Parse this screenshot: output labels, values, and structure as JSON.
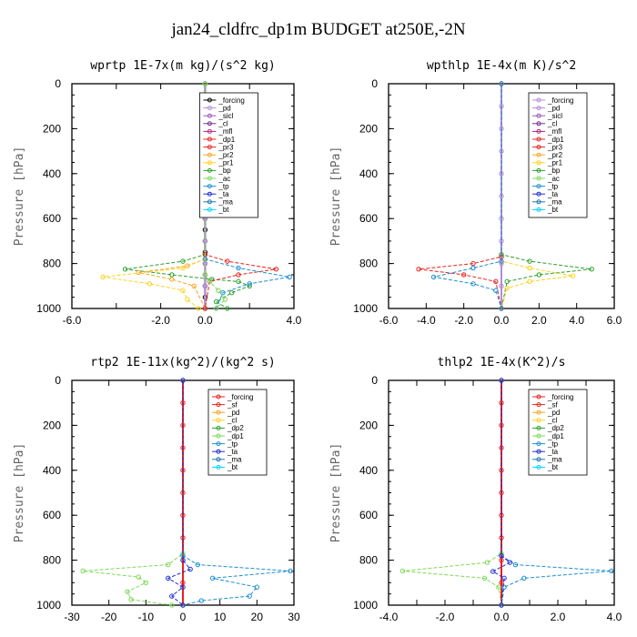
{
  "figure": {
    "title": "jan24_cldfrc_dp1m  BUDGET at250E,-2N",
    "background": "#ffffff"
  },
  "colors": {
    "_forcing": "#e8211f",
    "_forcing_black": "#000000",
    "_pd": "#b58ad8",
    "_sicl": "#9b59b6",
    "_cl": "#7b2d8e",
    "_mfl": "#b0237a",
    "_dp1": "#e8211f",
    "_pr3": "#e8211f",
    "_pr2": "#f5a623",
    "_pr1": "#ffd21f",
    "_bp": "#2ca02c",
    "_ac": "#7ed957",
    "_tp": "#1f8fd1",
    "_ta": "#1f2fd1",
    "_ma": "#1f77b4",
    "_bt": "#00d4ff",
    "_sf": "#e8211f",
    "_dp2": "#2ca02c"
  },
  "chart_data": [
    {
      "type": "line",
      "title": "wprtp  1E-7x(m kg)/(s^2 kg)",
      "ylabel": "Pressure [hPa]",
      "xlim": [
        -6,
        4
      ],
      "ylim": [
        1000,
        0
      ],
      "xticks": [
        -6,
        -4,
        -2,
        0,
        2,
        4
      ],
      "xticklabels": [
        "-6.0",
        "",
        "-2.0",
        "0.0",
        "",
        "4.0"
      ],
      "yticks": [
        0,
        200,
        400,
        600,
        800,
        1000
      ],
      "yticklabels": [
        "0",
        "200",
        "400",
        "600",
        "800",
        "1000"
      ],
      "legend_position": "top-center",
      "legend": [
        "_forcing",
        "_pd",
        "_sicl",
        "_cl",
        "_mfl",
        "_dp1",
        "_pr3",
        "_pr2",
        "_pr1",
        "_bp",
        "_ac",
        "_tp",
        "_ta",
        "_ma",
        "_bt"
      ],
      "legend_colors": [
        "#000000",
        "#b58ad8",
        "#9b59b6",
        "#7b2d8e",
        "#b0237a",
        "#e8211f",
        "#e8211f",
        "#f5a623",
        "#ffd21f",
        "#2ca02c",
        "#7ed957",
        "#1f8fd1",
        "#1f2fd1",
        "#1f77b4",
        "#00d4ff"
      ],
      "series": [
        {
          "name": "_forcing",
          "color": "#000000",
          "x": [
            0,
            0,
            0,
            0,
            0,
            0,
            0,
            0,
            0,
            0,
            0,
            0,
            0,
            0,
            0,
            0,
            0,
            0,
            0,
            0,
            0
          ],
          "y": [
            0,
            50,
            100,
            150,
            200,
            250,
            300,
            350,
            400,
            450,
            500,
            550,
            600,
            650,
            700,
            750,
            800,
            850,
            900,
            950,
            1000
          ]
        },
        {
          "name": "_pd",
          "color": "#b58ad8",
          "x": [
            0,
            0,
            0,
            0,
            0,
            0,
            0,
            0,
            0,
            0,
            0,
            0
          ],
          "y": [
            0,
            100,
            200,
            300,
            400,
            500,
            600,
            700,
            800,
            850,
            900,
            1000
          ]
        },
        {
          "name": "_bp",
          "color": "#2ca02c",
          "x": [
            0,
            0,
            -1.0,
            -3.6,
            -1.5,
            0.3,
            1.5,
            2.0,
            1.2,
            0.5,
            1.0
          ],
          "y": [
            0,
            760,
            790,
            825,
            850,
            870,
            880,
            900,
            930,
            970,
            1000
          ]
        },
        {
          "name": "_pr2",
          "color": "#f5a623",
          "x": [
            0,
            0,
            -0.8,
            -3.0,
            -1.5,
            -0.5,
            0
          ],
          "y": [
            0,
            780,
            810,
            840,
            870,
            900,
            1000
          ]
        },
        {
          "name": "_pr1",
          "color": "#ffd21f",
          "x": [
            0,
            0,
            -1.0,
            -4.6,
            -2.5,
            -1.0,
            -0.8,
            -0.3
          ],
          "y": [
            0,
            780,
            820,
            860,
            890,
            920,
            960,
            1000
          ]
        },
        {
          "name": "_dp1",
          "color": "#e8211f",
          "x": [
            0,
            0,
            1.0,
            3.2,
            1.5,
            0.2,
            0
          ],
          "y": [
            0,
            760,
            790,
            825,
            850,
            880,
            1000
          ]
        },
        {
          "name": "_tp",
          "color": "#1f8fd1",
          "x": [
            0,
            0,
            1.5,
            3.8,
            2.0,
            0.8,
            0.5
          ],
          "y": [
            0,
            780,
            820,
            860,
            890,
            930,
            1000
          ]
        },
        {
          "name": "_ac",
          "color": "#7ed957",
          "x": [
            0,
            0,
            0.2,
            0.6,
            0.9,
            0.5
          ],
          "y": [
            0,
            850,
            880,
            920,
            960,
            1000
          ]
        }
      ]
    },
    {
      "type": "line",
      "title": "wpthlp  1E-4x(m K)/s^2",
      "ylabel": "Pressure [hPa]",
      "xlim": [
        -6,
        6
      ],
      "ylim": [
        1000,
        0
      ],
      "xticks": [
        -6,
        -4,
        -2,
        0,
        2,
        4,
        6
      ],
      "xticklabels": [
        "-6.0",
        "-4.0",
        "-2.0",
        "0.0",
        "2.0",
        "4.0",
        "6.0"
      ],
      "yticks": [
        0,
        200,
        400,
        600,
        800,
        1000
      ],
      "yticklabels": [
        "0",
        "200",
        "400",
        "600",
        "800",
        "1000"
      ],
      "legend_position": "top-right",
      "legend": [
        "_forcing",
        "_pd",
        "_sicl",
        "_cl",
        "_mfl",
        "_dp1",
        "_pr3",
        "_pr2",
        "_pr1",
        "_bp",
        "_ac",
        "_tp",
        "_ta",
        "_ma",
        "_bt"
      ],
      "legend_colors": [
        "#b58ad8",
        "#b58ad8",
        "#9b59b6",
        "#7b2d8e",
        "#b0237a",
        "#e8211f",
        "#e8211f",
        "#f5a623",
        "#ffd21f",
        "#2ca02c",
        "#7ed957",
        "#1f8fd1",
        "#1f2fd1",
        "#1f77b4",
        "#00d4ff"
      ],
      "series": [
        {
          "name": "_forcing",
          "color": "#b58ad8",
          "x": [
            0,
            0,
            0,
            0,
            0,
            0,
            0,
            0,
            0,
            0,
            0
          ],
          "y": [
            0,
            100,
            200,
            300,
            400,
            500,
            600,
            700,
            800,
            900,
            1000
          ]
        },
        {
          "name": "_bp",
          "color": "#2ca02c",
          "x": [
            0,
            0,
            1.5,
            4.8,
            2.0,
            0.3,
            0
          ],
          "y": [
            0,
            760,
            790,
            825,
            850,
            880,
            1000
          ]
        },
        {
          "name": "_pr1",
          "color": "#ffd21f",
          "x": [
            0,
            0,
            1.5,
            3.8,
            1.5,
            0.3,
            0
          ],
          "y": [
            0,
            790,
            820,
            855,
            880,
            910,
            1000
          ]
        },
        {
          "name": "_dp1",
          "color": "#e8211f",
          "x": [
            0,
            0,
            -1.5,
            -4.4,
            -2.0,
            -0.3,
            0
          ],
          "y": [
            0,
            770,
            800,
            825,
            850,
            880,
            1000
          ]
        },
        {
          "name": "_tp",
          "color": "#1f8fd1",
          "x": [
            0,
            0,
            -1.5,
            -3.6,
            -1.5,
            -0.3,
            0
          ],
          "y": [
            0,
            790,
            820,
            860,
            890,
            920,
            1000
          ]
        }
      ]
    },
    {
      "type": "line",
      "title": "rtp2  1E-11x(kg^2)/(kg^2 s)",
      "ylabel": "Pressure [hPa]",
      "xlim": [
        -30,
        30
      ],
      "ylim": [
        1000,
        0
      ],
      "xticks": [
        -30,
        -20,
        -10,
        0,
        10,
        20,
        30
      ],
      "xticklabels": [
        "-30",
        "-20",
        "-10",
        "0",
        "10",
        "20",
        "30"
      ],
      "yticks": [
        0,
        200,
        400,
        600,
        800,
        1000
      ],
      "yticklabels": [
        "0",
        "200",
        "400",
        "600",
        "800",
        "1000"
      ],
      "legend_position": "top-right",
      "legend": [
        "_forcing",
        "_sf",
        "_pd",
        "_cl",
        "_dp2",
        "_dp1",
        "_tp",
        "_ta",
        "_ma",
        "_bt"
      ],
      "legend_colors": [
        "#e8211f",
        "#e8211f",
        "#f5a623",
        "#ffd21f",
        "#2ca02c",
        "#7ed957",
        "#1f8fd1",
        "#1f2fd1",
        "#1f77b4",
        "#00d4ff"
      ],
      "series": [
        {
          "name": "_forcing",
          "color": "#e8211f",
          "x": [
            0,
            0,
            0,
            0,
            0,
            0,
            0,
            0,
            0,
            0,
            0
          ],
          "y": [
            0,
            100,
            200,
            300,
            400,
            500,
            600,
            700,
            800,
            900,
            1000
          ]
        },
        {
          "name": "_dp1",
          "color": "#7ed957",
          "x": [
            0,
            0,
            -4,
            -27,
            -12,
            -10,
            -15,
            -14,
            -3
          ],
          "y": [
            0,
            770,
            820,
            848,
            875,
            900,
            940,
            975,
            1000
          ]
        },
        {
          "name": "_tp",
          "color": "#1f8fd1",
          "x": [
            0,
            0,
            4,
            29,
            8,
            20,
            18,
            5,
            0
          ],
          "y": [
            0,
            780,
            820,
            848,
            880,
            920,
            960,
            980,
            1000
          ]
        },
        {
          "name": "_ta",
          "color": "#1f2fd1",
          "x": [
            0,
            0,
            2,
            -4,
            0,
            -3,
            0
          ],
          "y": [
            0,
            800,
            840,
            880,
            920,
            960,
            1000
          ]
        }
      ]
    },
    {
      "type": "line",
      "title": "thlp2  1E-4x(K^2)/s",
      "ylabel": "Pressure [hPa]",
      "xlim": [
        -4,
        4
      ],
      "ylim": [
        1000,
        0
      ],
      "xticks": [
        -4,
        -3,
        -2,
        -1,
        0,
        1,
        2,
        3,
        4
      ],
      "xticklabels": [
        "-4.0",
        "",
        "-2.0",
        "",
        "0.0",
        "",
        "2.0",
        "",
        "4.0"
      ],
      "yticks": [
        0,
        200,
        400,
        600,
        800,
        1000
      ],
      "yticklabels": [
        "0",
        "200",
        "400",
        "600",
        "800",
        "1000"
      ],
      "legend_position": "top-right",
      "legend": [
        "_forcing",
        "_sf",
        "_pd",
        "_cl",
        "_dp2",
        "_dp1",
        "_tp",
        "_ta",
        "_ma",
        "_bt"
      ],
      "legend_colors": [
        "#e8211f",
        "#e8211f",
        "#f5a623",
        "#ffd21f",
        "#2ca02c",
        "#7ed957",
        "#1f8fd1",
        "#1f2fd1",
        "#1f77b4",
        "#00d4ff"
      ],
      "series": [
        {
          "name": "_forcing",
          "color": "#e8211f",
          "x": [
            0,
            0,
            0,
            0,
            0,
            0,
            0,
            0,
            0,
            0,
            0
          ],
          "y": [
            0,
            100,
            200,
            300,
            400,
            500,
            600,
            700,
            800,
            900,
            1000
          ]
        },
        {
          "name": "_dp1",
          "color": "#7ed957",
          "x": [
            0,
            0,
            -0.5,
            -3.5,
            -0.6,
            -0.1,
            0
          ],
          "y": [
            0,
            770,
            810,
            848,
            880,
            920,
            1000
          ]
        },
        {
          "name": "_tp",
          "color": "#1f8fd1",
          "x": [
            0,
            0,
            0.5,
            3.9,
            0.8,
            0.1,
            0
          ],
          "y": [
            0,
            780,
            820,
            848,
            880,
            920,
            1000
          ]
        },
        {
          "name": "_ta",
          "color": "#1f2fd1",
          "x": [
            0,
            0,
            0.3,
            -0.3,
            0.1,
            0
          ],
          "y": [
            0,
            780,
            810,
            850,
            880,
            1000
          ]
        }
      ]
    }
  ]
}
